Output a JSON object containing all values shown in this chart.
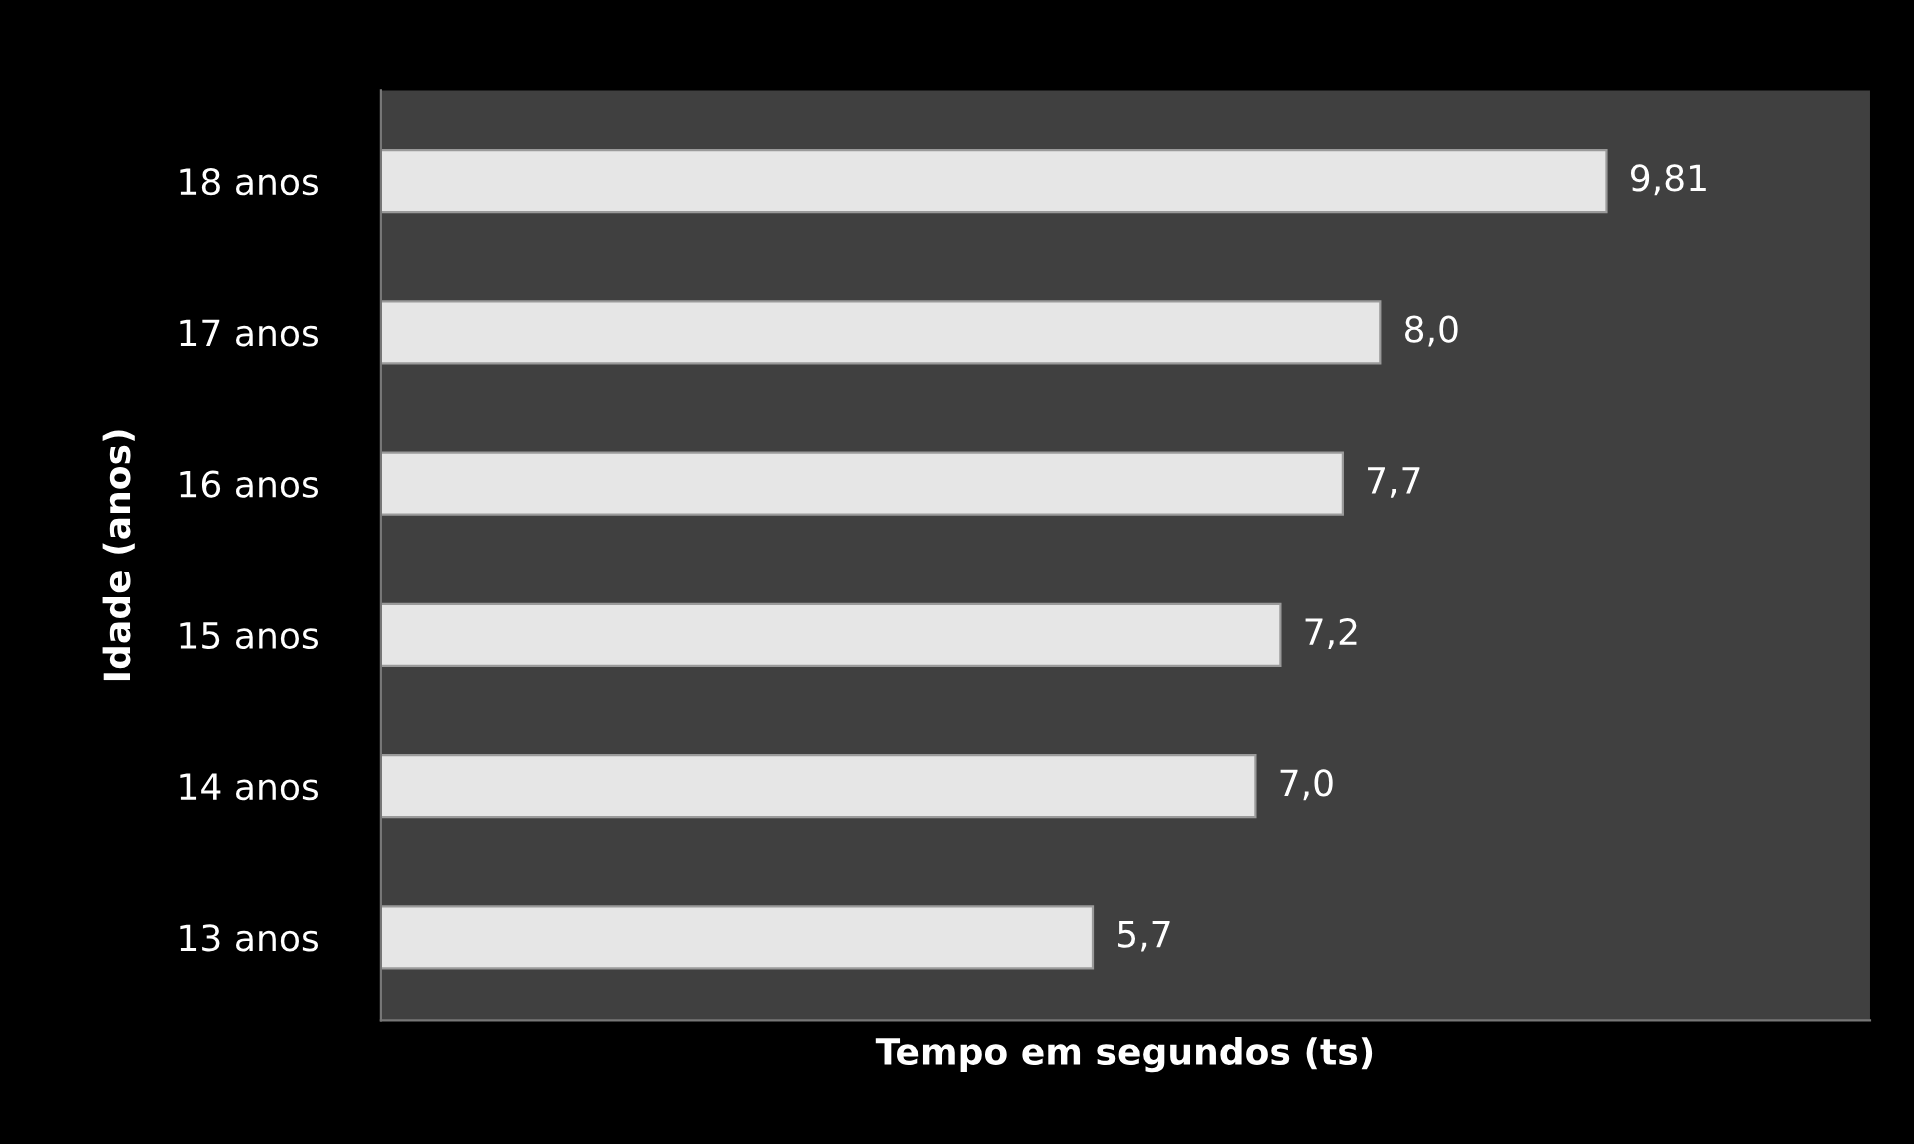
{
  "chart_data": {
    "type": "bar",
    "orientation": "horizontal",
    "xlabel": "Tempo em segundos (ts)",
    "ylabel": "Idade (anos)",
    "categories": [
      "18 anos",
      "17 anos",
      "16 anos",
      "15 anos",
      "14 anos",
      "13 anos"
    ],
    "values": [
      9.81,
      8.0,
      7.7,
      7.2,
      7.0,
      5.7
    ],
    "value_labels": [
      "9,81",
      "8,0",
      "7,7",
      "7,2",
      "7,0",
      "5,7"
    ],
    "color": "#e6e6e6",
    "grid": false,
    "legend": false
  }
}
